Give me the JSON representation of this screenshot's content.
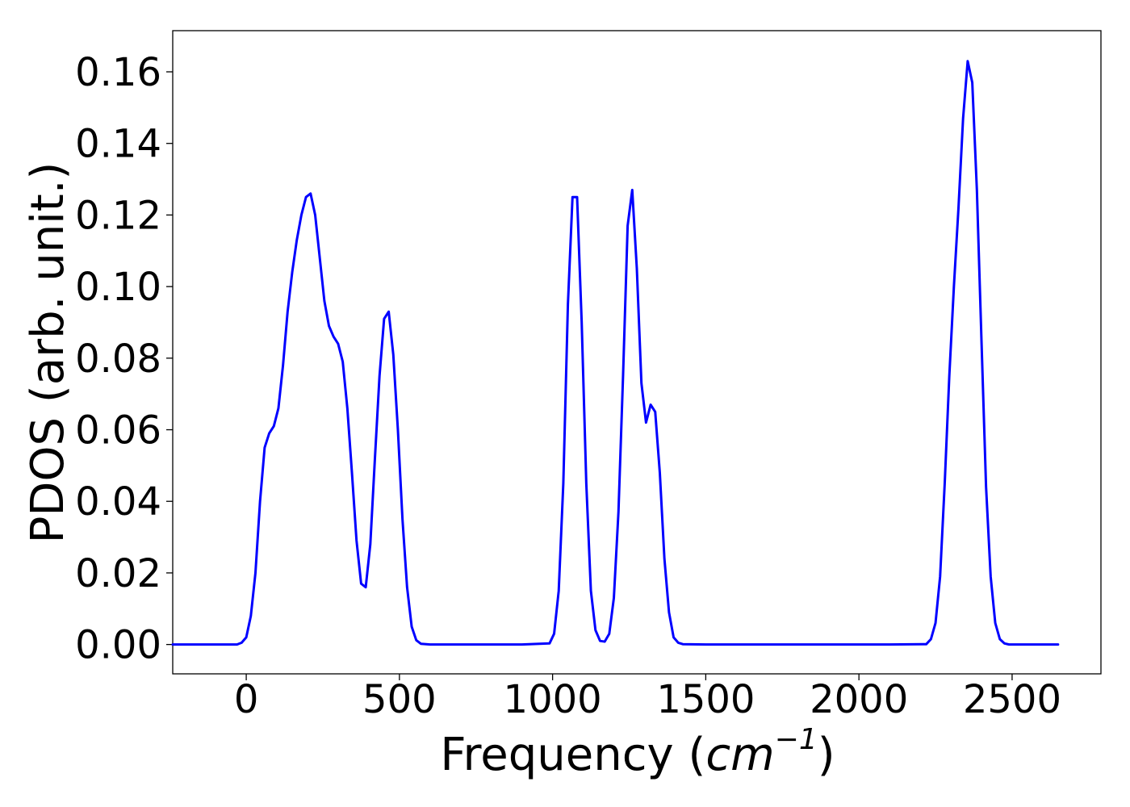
{
  "chart_data": {
    "type": "line",
    "title": "",
    "xlabel_main": "Frequency (",
    "xlabel_unit_base": "cm",
    "xlabel_unit_exponent": "−1",
    "xlabel_close": ")",
    "ylabel": "PDOS (arb. unit.)",
    "xlim": [
      -240,
      2790
    ],
    "ylim": [
      -0.0082,
      0.1715
    ],
    "xticks": [
      0,
      500,
      1000,
      1500,
      2000,
      2500
    ],
    "xtick_labels": [
      "0",
      "500",
      "1000",
      "1500",
      "2000",
      "2500"
    ],
    "yticks": [
      0.0,
      0.02,
      0.04,
      0.06,
      0.08,
      0.1,
      0.12,
      0.14,
      0.16
    ],
    "ytick_labels": [
      "0.00",
      "0.02",
      "0.04",
      "0.06",
      "0.08",
      "0.10",
      "0.12",
      "0.14",
      "0.16"
    ],
    "grid": false,
    "line_color": "#0000ff",
    "series": [
      {
        "x": [
          -240,
          -30,
          -15,
          0,
          15,
          30,
          45,
          60,
          75,
          90,
          105,
          120,
          135,
          150,
          165,
          180,
          195,
          210,
          225,
          240,
          255,
          270,
          285,
          300,
          315,
          330,
          345,
          360,
          375,
          390,
          405,
          420,
          435,
          450,
          465,
          480,
          495,
          510,
          525,
          540,
          555,
          570,
          600,
          700,
          800,
          900,
          990,
          1005,
          1020,
          1035,
          1050,
          1065,
          1080,
          1095,
          1110,
          1125,
          1140,
          1155,
          1170,
          1185,
          1200,
          1215,
          1230,
          1245,
          1260,
          1275,
          1290,
          1305,
          1320,
          1335,
          1350,
          1365,
          1380,
          1395,
          1410,
          1425,
          1500,
          1700,
          1900,
          2100,
          2220,
          2235,
          2250,
          2265,
          2280,
          2295,
          2310,
          2325,
          2340,
          2355,
          2370,
          2385,
          2400,
          2415,
          2430,
          2445,
          2460,
          2475,
          2490,
          2550,
          2650
        ],
        "y": [
          0.0,
          0.0,
          0.0005,
          0.002,
          0.008,
          0.02,
          0.04,
          0.055,
          0.059,
          0.061,
          0.066,
          0.078,
          0.093,
          0.104,
          0.113,
          0.12,
          0.125,
          0.126,
          0.12,
          0.108,
          0.096,
          0.089,
          0.086,
          0.084,
          0.079,
          0.066,
          0.048,
          0.029,
          0.017,
          0.016,
          0.028,
          0.052,
          0.075,
          0.091,
          0.093,
          0.081,
          0.06,
          0.035,
          0.016,
          0.005,
          0.0012,
          0.0002,
          0.0,
          0.0,
          0.0,
          0.0,
          0.0003,
          0.003,
          0.015,
          0.045,
          0.095,
          0.125,
          0.125,
          0.09,
          0.045,
          0.015,
          0.004,
          0.001,
          0.0008,
          0.003,
          0.013,
          0.037,
          0.075,
          0.117,
          0.127,
          0.105,
          0.073,
          0.062,
          0.067,
          0.065,
          0.048,
          0.024,
          0.009,
          0.002,
          0.0005,
          0.0001,
          0.0,
          0.0,
          0.0,
          0.0,
          0.0001,
          0.0015,
          0.006,
          0.019,
          0.045,
          0.075,
          0.1,
          0.122,
          0.147,
          0.163,
          0.157,
          0.127,
          0.085,
          0.044,
          0.019,
          0.006,
          0.0015,
          0.0003,
          0.0,
          0.0,
          0.0
        ]
      }
    ]
  }
}
